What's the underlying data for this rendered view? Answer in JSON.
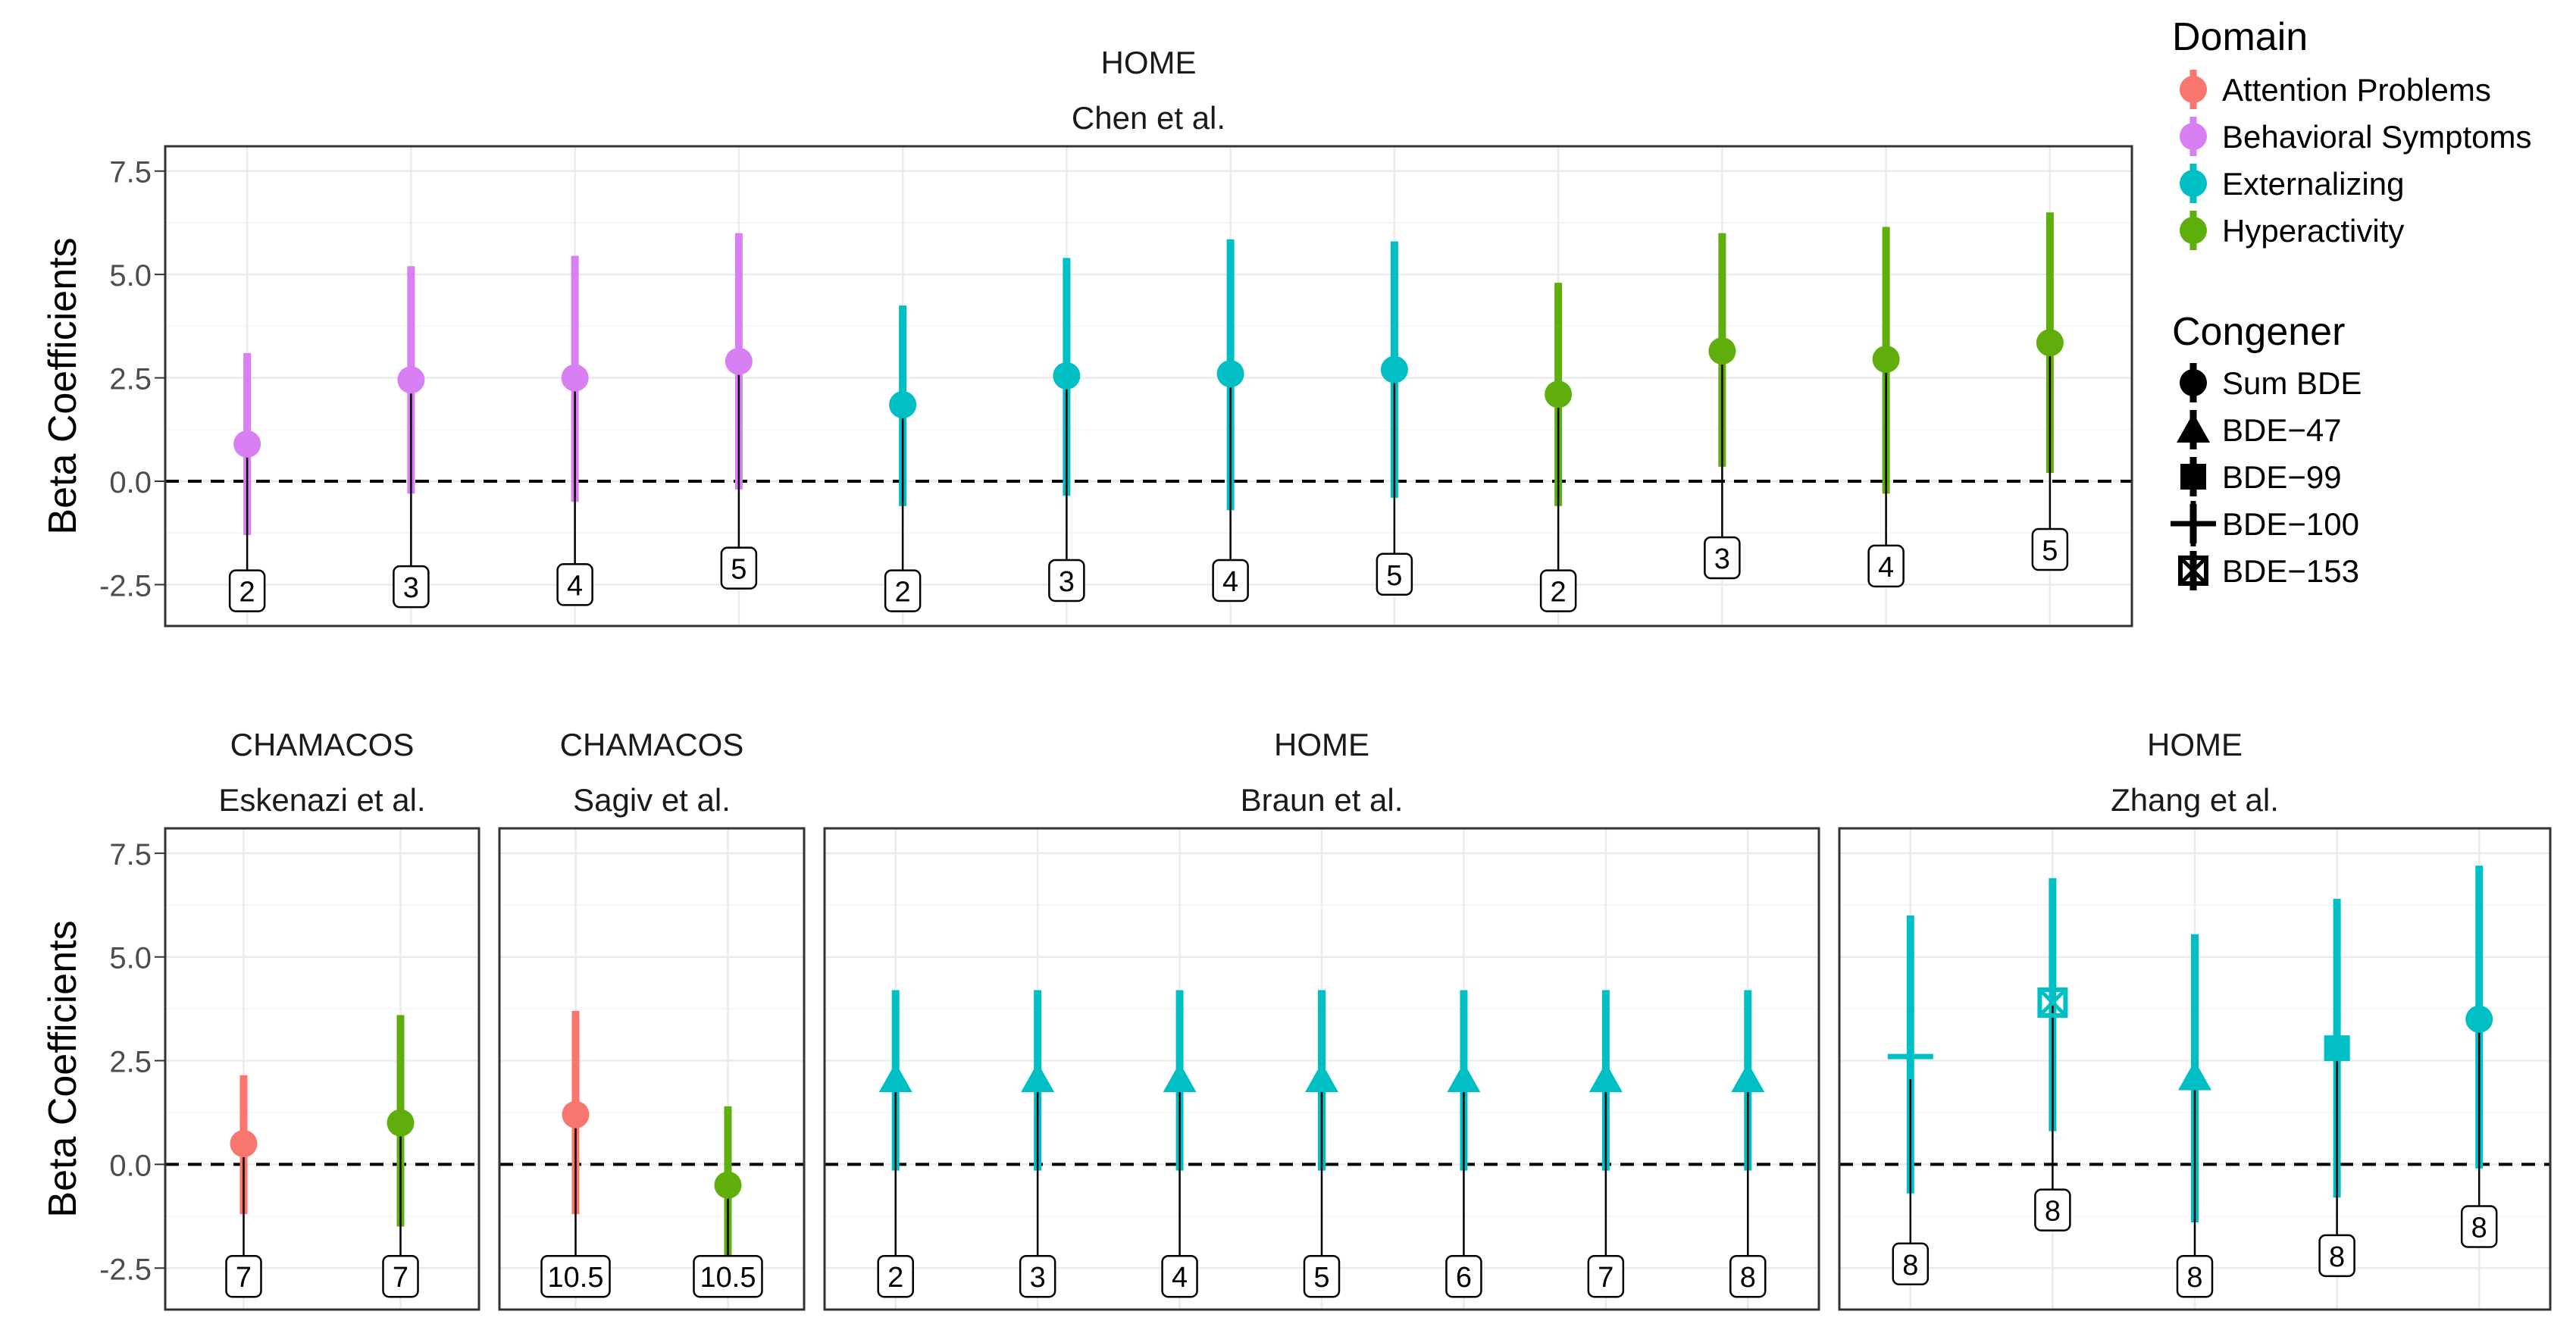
{
  "colors": {
    "attention": "#F8766D",
    "behavioral": "#D77FF3",
    "externalizing": "#00BFC4",
    "hyperactivity": "#5FAE0C"
  },
  "y_axis": {
    "label": "Beta Coefficients",
    "ticks": [
      -2.5,
      0.0,
      2.5,
      5.0,
      7.5
    ],
    "tick_labels": [
      "-2.5",
      "0.0",
      "2.5",
      "5.0",
      "7.5"
    ],
    "ylim": [
      -3.5,
      8.1
    ]
  },
  "legend": {
    "domain_title": "Domain",
    "domain_items": [
      {
        "label": "Attention Problems",
        "color_key": "attention"
      },
      {
        "label": "Behavioral Symptoms",
        "color_key": "behavioral"
      },
      {
        "label": "Externalizing",
        "color_key": "externalizing"
      },
      {
        "label": "Hyperactivity",
        "color_key": "hyperactivity"
      }
    ],
    "congener_title": "Congener",
    "congener_items": [
      {
        "label": "Sum BDE",
        "shape": "circle"
      },
      {
        "label": "BDE−47",
        "shape": "triangle"
      },
      {
        "label": "BDE−99",
        "shape": "square"
      },
      {
        "label": "BDE−100",
        "shape": "plus"
      },
      {
        "label": "BDE−153",
        "shape": "boxx"
      }
    ]
  },
  "chart_data": [
    {
      "type": "scatter",
      "strip_top": "HOME",
      "strip_bottom": "Chen et al.",
      "points": [
        {
          "y": 0.9,
          "lo": -1.3,
          "hi": 3.1,
          "domain": "behavioral",
          "shape": "circle",
          "age": "2",
          "label_y": -2.65
        },
        {
          "y": 2.45,
          "lo": -0.3,
          "hi": 5.2,
          "domain": "behavioral",
          "shape": "circle",
          "age": "3",
          "label_y": -2.55
        },
        {
          "y": 2.5,
          "lo": -0.5,
          "hi": 5.45,
          "domain": "behavioral",
          "shape": "circle",
          "age": "4",
          "label_y": -2.5
        },
        {
          "y": 2.9,
          "lo": -0.2,
          "hi": 6.0,
          "domain": "behavioral",
          "shape": "circle",
          "age": "5",
          "label_y": -2.1
        },
        {
          "y": 1.85,
          "lo": -0.6,
          "hi": 4.25,
          "domain": "externalizing",
          "shape": "circle",
          "age": "2",
          "label_y": -2.65
        },
        {
          "y": 2.55,
          "lo": -0.35,
          "hi": 5.4,
          "domain": "externalizing",
          "shape": "circle",
          "age": "3",
          "label_y": -2.4
        },
        {
          "y": 2.6,
          "lo": -0.7,
          "hi": 5.85,
          "domain": "externalizing",
          "shape": "circle",
          "age": "4",
          "label_y": -2.4
        },
        {
          "y": 2.7,
          "lo": -0.4,
          "hi": 5.8,
          "domain": "externalizing",
          "shape": "circle",
          "age": "5",
          "label_y": -2.25
        },
        {
          "y": 2.1,
          "lo": -0.6,
          "hi": 4.8,
          "domain": "hyperactivity",
          "shape": "circle",
          "age": "2",
          "label_y": -2.65
        },
        {
          "y": 3.15,
          "lo": 0.35,
          "hi": 6.0,
          "domain": "hyperactivity",
          "shape": "circle",
          "age": "3",
          "label_y": -1.85
        },
        {
          "y": 2.95,
          "lo": -0.3,
          "hi": 6.15,
          "domain": "hyperactivity",
          "shape": "circle",
          "age": "4",
          "label_y": -2.05
        },
        {
          "y": 3.35,
          "lo": 0.2,
          "hi": 6.5,
          "domain": "hyperactivity",
          "shape": "circle",
          "age": "5",
          "label_y": -1.65
        }
      ]
    },
    {
      "type": "scatter",
      "strip_top": "CHAMACOS",
      "strip_bottom": "Eskenazi et al.",
      "points": [
        {
          "y": 0.5,
          "lo": -1.2,
          "hi": 2.15,
          "domain": "attention",
          "shape": "circle",
          "age": "7",
          "label_y": -2.7
        },
        {
          "y": 1.0,
          "lo": -1.5,
          "hi": 3.6,
          "domain": "hyperactivity",
          "shape": "circle",
          "age": "7",
          "label_y": -2.7
        }
      ]
    },
    {
      "type": "scatter",
      "strip_top": "CHAMACOS",
      "strip_bottom": "Sagiv et al.",
      "points": [
        {
          "y": 1.2,
          "lo": -1.2,
          "hi": 3.7,
          "domain": "attention",
          "shape": "circle",
          "age": "10.5",
          "label_y": -2.7
        },
        {
          "y": -0.5,
          "lo": -2.2,
          "hi": 1.4,
          "domain": "hyperactivity",
          "shape": "circle",
          "age": "10.5",
          "label_y": -2.7
        }
      ]
    },
    {
      "type": "scatter",
      "strip_top": "HOME",
      "strip_bottom": "Braun et al.",
      "points": [
        {
          "y": 2.05,
          "lo": -0.15,
          "hi": 4.2,
          "domain": "externalizing",
          "shape": "triangle",
          "age": "2",
          "label_y": -2.7
        },
        {
          "y": 2.05,
          "lo": -0.15,
          "hi": 4.2,
          "domain": "externalizing",
          "shape": "triangle",
          "age": "3",
          "label_y": -2.7
        },
        {
          "y": 2.05,
          "lo": -0.15,
          "hi": 4.2,
          "domain": "externalizing",
          "shape": "triangle",
          "age": "4",
          "label_y": -2.7
        },
        {
          "y": 2.05,
          "lo": -0.15,
          "hi": 4.2,
          "domain": "externalizing",
          "shape": "triangle",
          "age": "5",
          "label_y": -2.7
        },
        {
          "y": 2.05,
          "lo": -0.15,
          "hi": 4.2,
          "domain": "externalizing",
          "shape": "triangle",
          "age": "6",
          "label_y": -2.7
        },
        {
          "y": 2.05,
          "lo": -0.15,
          "hi": 4.2,
          "domain": "externalizing",
          "shape": "triangle",
          "age": "7",
          "label_y": -2.7
        },
        {
          "y": 2.05,
          "lo": -0.15,
          "hi": 4.2,
          "domain": "externalizing",
          "shape": "triangle",
          "age": "8",
          "label_y": -2.7
        }
      ]
    },
    {
      "type": "scatter",
      "strip_top": "HOME",
      "strip_bottom": "Zhang et al.",
      "points": [
        {
          "y": 2.6,
          "lo": -0.7,
          "hi": 6.0,
          "domain": "externalizing",
          "shape": "plus",
          "age": "8",
          "label_y": -2.4
        },
        {
          "y": 3.9,
          "lo": 0.8,
          "hi": 6.9,
          "domain": "externalizing",
          "shape": "boxx",
          "age": "8",
          "label_y": -1.1
        },
        {
          "y": 2.1,
          "lo": -1.4,
          "hi": 5.55,
          "domain": "externalizing",
          "shape": "triangle",
          "age": "8",
          "label_y": -2.7
        },
        {
          "y": 2.8,
          "lo": -0.8,
          "hi": 6.4,
          "domain": "externalizing",
          "shape": "square",
          "age": "8",
          "label_y": -2.2
        },
        {
          "y": 3.5,
          "lo": -0.1,
          "hi": 7.2,
          "domain": "externalizing",
          "shape": "circle",
          "age": "8",
          "label_y": -1.5
        }
      ]
    }
  ]
}
